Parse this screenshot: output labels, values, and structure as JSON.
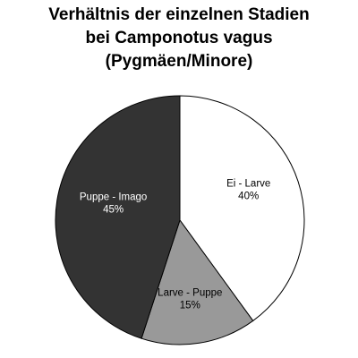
{
  "chart_data": {
    "type": "pie",
    "title_lines": [
      "Verhältnis der einzelnen Stadien",
      "bei Camponotus vagus",
      "(Pygmäen/Minore)"
    ],
    "slices": [
      {
        "label": "Ei - Larve",
        "value": 40,
        "value_label": "40%",
        "color": "#ffffff",
        "text_color": "#000000"
      },
      {
        "label": "Larve - Puppe",
        "value": 15,
        "value_label": "15%",
        "color": "#999999",
        "text_color": "#000000"
      },
      {
        "label": "Puppe - Imago",
        "value": 45,
        "value_label": "45%",
        "color": "#333333",
        "text_color": "#ffffff"
      }
    ],
    "start_angle_deg": 0,
    "direction": "clockwise",
    "legend": "none",
    "outline_color": "#000000"
  }
}
